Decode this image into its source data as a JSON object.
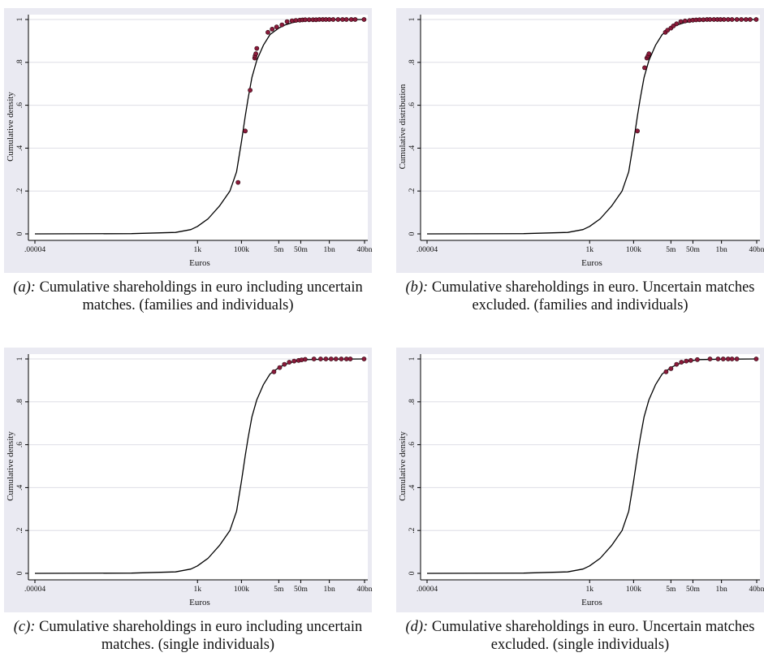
{
  "chart_data": [
    {
      "type": "line",
      "panel_tag": "(a):",
      "caption": " Cumulative shareholdings in euro including uncertain matches. (families and individuals)",
      "xlabel": "Euros",
      "ylabel": "Cumulative density",
      "xscale": "log",
      "xlim": [
        4e-05,
        40000000000
      ],
      "ylim": [
        0,
        1
      ],
      "xticks": [
        {
          "value": 4e-05,
          "label": ".00004"
        },
        {
          "value": 1000,
          "label": "1k"
        },
        {
          "value": 100000,
          "label": "100k"
        },
        {
          "value": 5000000,
          "label": "5m"
        },
        {
          "value": 50000000,
          "label": "50m"
        },
        {
          "value": 1000000000,
          "label": "1bn"
        },
        {
          "value": 40000000000,
          "label": "40bn"
        }
      ],
      "yticks": [
        {
          "value": 0,
          "label": "0"
        },
        {
          "value": 0.2,
          "label": ".2"
        },
        {
          "value": 0.4,
          "label": ".4"
        },
        {
          "value": 0.6,
          "label": ".6"
        },
        {
          "value": 0.8,
          "label": ".8"
        },
        {
          "value": 1,
          "label": "1"
        }
      ],
      "grid": true,
      "series": [
        {
          "kind": "line",
          "color": "#000000",
          "x": [
            4e-05,
            1,
            100,
            500,
            1000,
            3000,
            10000,
            30000,
            60000,
            100000,
            150000,
            200000,
            300000,
            500000,
            1000000,
            2000000,
            5000000,
            10000000,
            20000000,
            50000000,
            100000000,
            1000000000,
            40000000000
          ],
          "y": [
            0,
            0.001,
            0.007,
            0.02,
            0.035,
            0.07,
            0.13,
            0.2,
            0.29,
            0.43,
            0.55,
            0.63,
            0.73,
            0.81,
            0.88,
            0.93,
            0.96,
            0.975,
            0.985,
            0.993,
            0.997,
            0.999,
            1
          ]
        },
        {
          "kind": "scatter",
          "color": "#8b1a3a",
          "x": [
            70000,
            150000,
            250000,
            400000,
            420000,
            450000,
            500000,
            1600000,
            2500000,
            4000000,
            7000000,
            12000000,
            20000000,
            30000000,
            45000000,
            60000000,
            80000000,
            120000000,
            180000000,
            250000000,
            350000000,
            500000000,
            700000000,
            1000000000,
            1500000000,
            2500000000,
            4000000000,
            6000000000,
            10000000000,
            15000000000,
            38000000000
          ],
          "y": [
            0.24,
            0.48,
            0.67,
            0.82,
            0.83,
            0.84,
            0.865,
            0.94,
            0.955,
            0.965,
            0.975,
            0.99,
            0.994,
            0.996,
            0.997,
            0.998,
            0.999,
            0.999,
            0.999,
            0.999,
            1,
            1,
            1,
            1,
            1,
            1,
            1,
            1,
            1,
            1,
            1
          ]
        }
      ]
    },
    {
      "type": "line",
      "panel_tag": "(b):",
      "caption": " Cumulative shareholdings in euro. Uncertain matches excluded. (families and individuals)",
      "xlabel": "Euros",
      "ylabel": "Cumulative distribution",
      "xscale": "log",
      "xlim": [
        4e-05,
        40000000000
      ],
      "ylim": [
        0,
        1
      ],
      "xticks": [
        {
          "value": 4e-05,
          "label": ".00004"
        },
        {
          "value": 1000,
          "label": "1k"
        },
        {
          "value": 100000,
          "label": "100k"
        },
        {
          "value": 5000000,
          "label": "5m"
        },
        {
          "value": 50000000,
          "label": "50m"
        },
        {
          "value": 1000000000,
          "label": "1bn"
        },
        {
          "value": 40000000000,
          "label": "40bn"
        }
      ],
      "yticks": [
        {
          "value": 0,
          "label": "0"
        },
        {
          "value": 0.2,
          "label": ".2"
        },
        {
          "value": 0.4,
          "label": ".4"
        },
        {
          "value": 0.6,
          "label": ".6"
        },
        {
          "value": 0.8,
          "label": ".8"
        },
        {
          "value": 1,
          "label": "1"
        }
      ],
      "grid": true,
      "series": [
        {
          "kind": "line",
          "color": "#000000",
          "x": [
            4e-05,
            1,
            100,
            500,
            1000,
            3000,
            10000,
            30000,
            60000,
            100000,
            150000,
            200000,
            300000,
            500000,
            1000000,
            2000000,
            5000000,
            10000000,
            20000000,
            50000000,
            100000000,
            1000000000,
            40000000000
          ],
          "y": [
            0,
            0.001,
            0.007,
            0.02,
            0.035,
            0.07,
            0.13,
            0.2,
            0.29,
            0.43,
            0.55,
            0.63,
            0.73,
            0.81,
            0.88,
            0.93,
            0.96,
            0.975,
            0.985,
            0.993,
            0.997,
            0.999,
            1
          ]
        },
        {
          "kind": "scatter",
          "color": "#8b1a3a",
          "x": [
            150000,
            320000,
            400000,
            450000,
            500000,
            2800000,
            3500000,
            5000000,
            6500000,
            9000000,
            14000000,
            22000000,
            35000000,
            50000000,
            70000000,
            100000000,
            150000000,
            220000000,
            300000000,
            450000000,
            650000000,
            900000000,
            1300000000,
            2000000000,
            3000000000,
            5000000000,
            8000000000,
            13000000000,
            20000000000,
            38000000000
          ],
          "y": [
            0.48,
            0.775,
            0.82,
            0.83,
            0.84,
            0.94,
            0.95,
            0.96,
            0.97,
            0.98,
            0.99,
            0.993,
            0.995,
            0.997,
            0.998,
            0.999,
            0.999,
            1,
            1,
            1,
            1,
            1,
            1,
            1,
            1,
            1,
            1,
            1,
            1,
            1
          ]
        }
      ]
    },
    {
      "type": "line",
      "panel_tag": "(c):",
      "caption": " Cumulative shareholdings in euro including uncertain matches. (single individuals)",
      "xlabel": "Euros",
      "ylabel": "Cumulative density",
      "xscale": "log",
      "xlim": [
        4e-05,
        40000000000
      ],
      "ylim": [
        0,
        1
      ],
      "xticks": [
        {
          "value": 4e-05,
          "label": ".00004"
        },
        {
          "value": 1000,
          "label": "1k"
        },
        {
          "value": 100000,
          "label": "100k"
        },
        {
          "value": 5000000,
          "label": "5m"
        },
        {
          "value": 50000000,
          "label": "50m"
        },
        {
          "value": 1000000000,
          "label": "1bn"
        },
        {
          "value": 40000000000,
          "label": "40bn"
        }
      ],
      "yticks": [
        {
          "value": 0,
          "label": "0"
        },
        {
          "value": 0.2,
          "label": ".2"
        },
        {
          "value": 0.4,
          "label": ".4"
        },
        {
          "value": 0.6,
          "label": ".6"
        },
        {
          "value": 0.8,
          "label": ".8"
        },
        {
          "value": 1,
          "label": "1"
        }
      ],
      "grid": true,
      "series": [
        {
          "kind": "line",
          "color": "#000000",
          "x": [
            4e-05,
            1,
            100,
            500,
            1000,
            3000,
            10000,
            30000,
            60000,
            100000,
            150000,
            200000,
            300000,
            500000,
            1000000,
            2000000,
            5000000,
            10000000,
            20000000,
            50000000,
            100000000,
            1000000000,
            40000000000
          ],
          "y": [
            0,
            0.001,
            0.007,
            0.02,
            0.035,
            0.07,
            0.13,
            0.2,
            0.29,
            0.43,
            0.55,
            0.63,
            0.73,
            0.81,
            0.88,
            0.93,
            0.96,
            0.975,
            0.985,
            0.993,
            0.997,
            0.999,
            1
          ]
        },
        {
          "kind": "scatter",
          "color": "#8b1a3a",
          "x": [
            3000000,
            5500000,
            9000000,
            15000000,
            25000000,
            40000000,
            55000000,
            80000000,
            200000000,
            400000000,
            700000000,
            1200000000,
            2000000000,
            3500000000,
            6000000000,
            9000000000,
            38000000000
          ],
          "y": [
            0.94,
            0.96,
            0.975,
            0.985,
            0.99,
            0.993,
            0.996,
            0.998,
            1,
            1,
            1,
            1,
            1,
            1,
            1,
            1,
            1
          ]
        }
      ]
    },
    {
      "type": "line",
      "panel_tag": "(d):",
      "caption": " Cumulative shareholdings in euro. Uncertain matches excluded. (single individuals)",
      "xlabel": "Euros",
      "ylabel": "Cumulative density",
      "xscale": "log",
      "xlim": [
        4e-05,
        40000000000
      ],
      "ylim": [
        0,
        1
      ],
      "xticks": [
        {
          "value": 4e-05,
          "label": ".00004"
        },
        {
          "value": 1000,
          "label": "1k"
        },
        {
          "value": 100000,
          "label": "100k"
        },
        {
          "value": 5000000,
          "label": "5m"
        },
        {
          "value": 50000000,
          "label": "50m"
        },
        {
          "value": 1000000000,
          "label": "1bn"
        },
        {
          "value": 40000000000,
          "label": "40bn"
        }
      ],
      "yticks": [
        {
          "value": 0,
          "label": "0"
        },
        {
          "value": 0.2,
          "label": ".2"
        },
        {
          "value": 0.4,
          "label": ".4"
        },
        {
          "value": 0.6,
          "label": ".6"
        },
        {
          "value": 0.8,
          "label": ".8"
        },
        {
          "value": 1,
          "label": "1"
        }
      ],
      "grid": true,
      "series": [
        {
          "kind": "line",
          "color": "#000000",
          "x": [
            4e-05,
            1,
            100,
            500,
            1000,
            3000,
            10000,
            30000,
            60000,
            100000,
            150000,
            200000,
            300000,
            500000,
            1000000,
            2000000,
            5000000,
            10000000,
            20000000,
            50000000,
            100000000,
            1000000000,
            40000000000
          ],
          "y": [
            0,
            0.001,
            0.007,
            0.02,
            0.035,
            0.07,
            0.13,
            0.2,
            0.29,
            0.43,
            0.55,
            0.63,
            0.73,
            0.81,
            0.88,
            0.93,
            0.96,
            0.975,
            0.985,
            0.993,
            0.997,
            0.999,
            1
          ]
        },
        {
          "kind": "scatter",
          "color": "#8b1a3a",
          "x": [
            3000000,
            5000000,
            9000000,
            15000000,
            25000000,
            40000000,
            80000000,
            300000000,
            700000000,
            1200000000,
            2000000000,
            3000000000,
            5000000000,
            38000000000
          ],
          "y": [
            0.94,
            0.955,
            0.975,
            0.985,
            0.99,
            0.993,
            0.997,
            1,
            1,
            1,
            1,
            1,
            1,
            1
          ]
        }
      ]
    }
  ]
}
